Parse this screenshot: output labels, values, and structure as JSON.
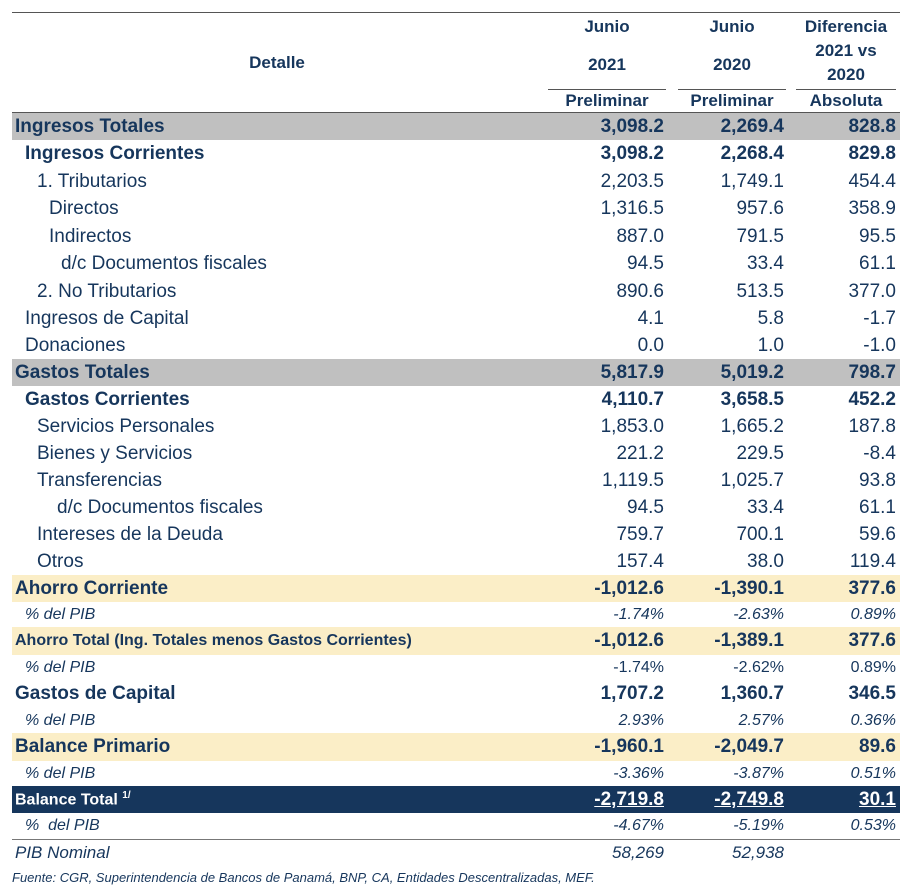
{
  "header": {
    "detalle": "Detalle",
    "col1": {
      "line1": "Junio",
      "line2": "2021",
      "line3": "Preliminar"
    },
    "col2": {
      "line1": "Junio",
      "line2": "2020",
      "line3": "Preliminar"
    },
    "col3": {
      "line1": "Diferencia",
      "line2": "2021 vs",
      "line3": "2020",
      "line4": "Absoluta"
    }
  },
  "rows": [
    {
      "label": "Ingresos Totales",
      "v1": "3,098.2",
      "v2": "2,269.4",
      "v3": "828.8"
    },
    {
      "label": "Ingresos Corrientes",
      "v1": "3,098.2",
      "v2": "2,268.4",
      "v3": "829.8"
    },
    {
      "label": "1. Tributarios",
      "v1": "2,203.5",
      "v2": "1,749.1",
      "v3": "454.4"
    },
    {
      "label": "Directos",
      "v1": "1,316.5",
      "v2": "957.6",
      "v3": "358.9"
    },
    {
      "label": "Indirectos",
      "v1": "887.0",
      "v2": "791.5",
      "v3": "95.5"
    },
    {
      "label": "d/c Documentos fiscales",
      "v1": "94.5",
      "v2": "33.4",
      "v3": "61.1"
    },
    {
      "label": "2. No Tributarios",
      "v1": "890.6",
      "v2": "513.5",
      "v3": "377.0"
    },
    {
      "label": "Ingresos de Capital",
      "v1": "4.1",
      "v2": "5.8",
      "v3": "-1.7"
    },
    {
      "label": "Donaciones",
      "v1": "0.0",
      "v2": "1.0",
      "v3": "-1.0"
    },
    {
      "label": "Gastos Totales",
      "v1": "5,817.9",
      "v2": "5,019.2",
      "v3": "798.7"
    },
    {
      "label": "Gastos Corrientes",
      "v1": "4,110.7",
      "v2": "3,658.5",
      "v3": "452.2"
    },
    {
      "label": "Servicios Personales",
      "v1": "1,853.0",
      "v2": "1,665.2",
      "v3": "187.8"
    },
    {
      "label": "Bienes y Servicios",
      "v1": "221.2",
      "v2": "229.5",
      "v3": "-8.4"
    },
    {
      "label": "Transferencias",
      "v1": "1,119.5",
      "v2": "1,025.7",
      "v3": "93.8"
    },
    {
      "label": "d/c Documentos fiscales",
      "v1": "94.5",
      "v2": "33.4",
      "v3": "61.1"
    },
    {
      "label": "Intereses de la Deuda",
      "v1": "759.7",
      "v2": "700.1",
      "v3": "59.6"
    },
    {
      "label": "Otros",
      "v1": "157.4",
      "v2": "38.0",
      "v3": "119.4"
    },
    {
      "label": "Ahorro Corriente",
      "v1": "-1,012.6",
      "v2": "-1,390.1",
      "v3": "377.6"
    },
    {
      "label": "% del PIB",
      "v1": "-1.74%",
      "v2": "-2.63%",
      "v3": "0.89%"
    },
    {
      "label": "Ahorro Total (Ing. Totales menos Gastos Corrientes)",
      "v1": "-1,012.6",
      "v2": "-1,389.1",
      "v3": "377.6"
    },
    {
      "label": "% del PIB",
      "v1": "-1.74%",
      "v2": "-2.62%",
      "v3": "0.89%"
    },
    {
      "label": "Gastos de Capital",
      "v1": "1,707.2",
      "v2": "1,360.7",
      "v3": "346.5"
    },
    {
      "label": "% del PIB",
      "v1": "2.93%",
      "v2": "2.57%",
      "v3": "0.36%"
    },
    {
      "label": "Balance Primario",
      "v1": "-1,960.1",
      "v2": "-2,049.7",
      "v3": "89.6"
    },
    {
      "label": "% del PIB",
      "v1": "-3.36%",
      "v2": "-3.87%",
      "v3": "0.51%"
    },
    {
      "label": "Balance Total",
      "sup": "1/",
      "v1": "-2,719.8",
      "v2": "-2,749.8",
      "v3": "30.1"
    },
    {
      "label": "%  del PIB",
      "v1": "-4.67%",
      "v2": "-5.19%",
      "v3": "0.53%"
    },
    {
      "label": "PIB Nominal",
      "v1": "58,269",
      "v2": "52,938",
      "v3": ""
    }
  ],
  "footer": "Fuente: CGR, Superintendencia de Bancos de Panamá, BNP, CA, Entidades Descentralizadas, MEF.",
  "colors": {
    "navy": "#16365c",
    "gray": "#c0c0c0",
    "cream": "#fbeec7"
  }
}
